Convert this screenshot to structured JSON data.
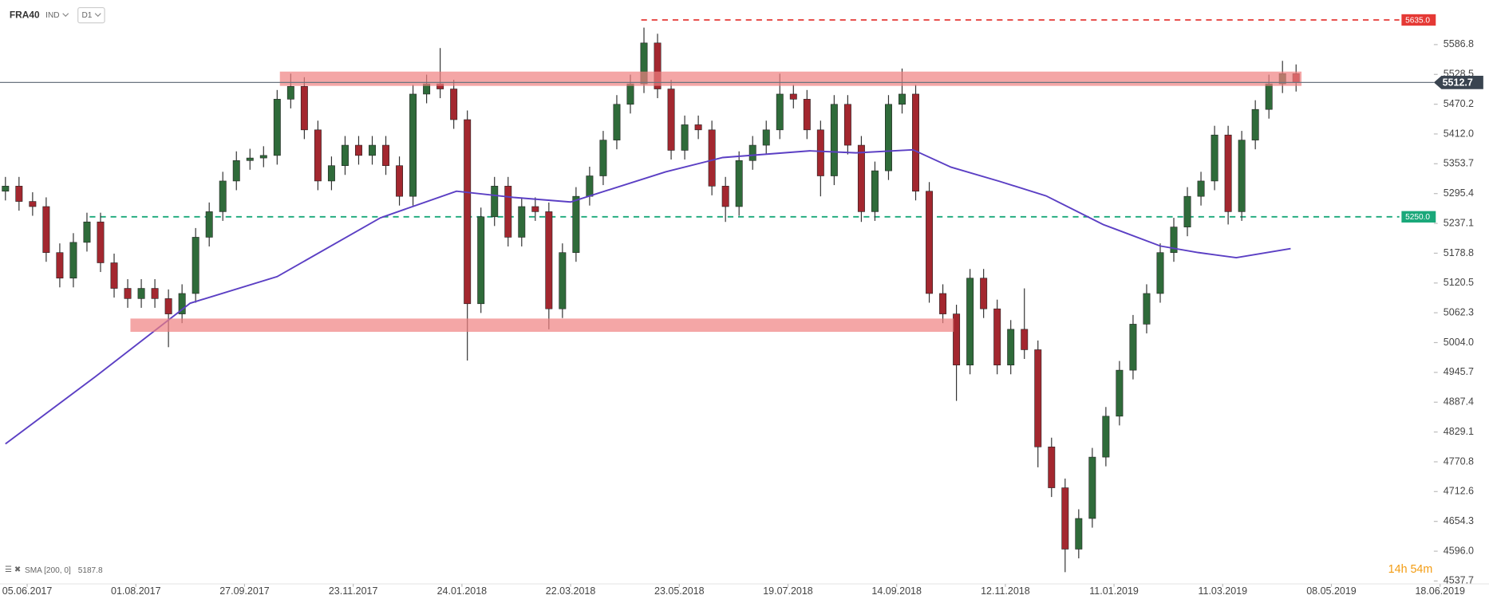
{
  "header": {
    "symbol": "FRA40",
    "kind": "IND",
    "timeframe": "D1"
  },
  "chart_data": {
    "type": "candlestick",
    "xlim": [
      0,
      548
    ],
    "ylim": [
      4532,
      5674
    ],
    "yticks": [
      5586.8,
      5528.5,
      5470.2,
      {
        "value": 5412,
        "label": "5412.0"
      },
      5353.7,
      5295.4,
      5237.1,
      5178.8,
      5120.5,
      5062.3,
      {
        "value": 5004,
        "label": "5004.0"
      },
      4945.7,
      4887.4,
      4829.1,
      4770.8,
      4712.6,
      4654.3,
      {
        "value": 4596,
        "label": "4596.0"
      },
      4537.7
    ],
    "xticks": [
      {
        "value": 10,
        "label": "05.06.2017"
      },
      {
        "value": 50,
        "label": "01.08.2017"
      },
      {
        "value": 90,
        "label": "27.09.2017"
      },
      {
        "value": 130,
        "label": "23.11.2017"
      },
      {
        "value": 170,
        "label": "24.01.2018"
      },
      {
        "value": 210,
        "label": "22.03.2018"
      },
      {
        "value": 250,
        "label": "23.05.2018"
      },
      {
        "value": 290,
        "label": "19.07.2018"
      },
      {
        "value": 330,
        "label": "14.09.2018"
      },
      {
        "value": 370,
        "label": "12.11.2018"
      },
      {
        "value": 410,
        "label": "11.01.2019"
      },
      {
        "value": 450,
        "label": "11.03.2019"
      },
      {
        "value": 490,
        "label": "08.05.2019"
      },
      {
        "value": 530,
        "label": "18.06.2019"
      }
    ],
    "candles": {
      "up_color": "#2f6b3a",
      "down_color": "#a3272f",
      "wick_color": "#333333",
      "x": [
        2,
        7,
        12,
        17,
        22,
        27,
        32,
        37,
        42,
        47,
        52,
        57,
        62,
        67,
        72,
        77,
        82,
        87,
        92,
        97,
        102,
        107,
        112,
        117,
        122,
        127,
        132,
        137,
        142,
        147,
        152,
        157,
        162,
        167,
        172,
        177,
        182,
        187,
        192,
        197,
        202,
        207,
        212,
        217,
        222,
        227,
        232,
        237,
        242,
        247,
        252,
        257,
        262,
        267,
        272,
        277,
        282,
        287,
        292,
        297,
        302,
        307,
        312,
        317,
        322,
        327,
        332,
        337,
        342,
        347,
        352,
        357,
        362,
        367,
        372,
        377,
        382,
        387,
        392,
        397,
        402,
        407,
        412,
        417,
        422,
        427,
        432,
        437,
        442,
        447,
        452,
        457,
        462,
        467,
        472,
        477
      ],
      "open": [
        5300,
        5310,
        5280,
        5270,
        5180,
        5130,
        5200,
        5240,
        5160,
        5110,
        5090,
        5110,
        5090,
        5060,
        5100,
        5210,
        5260,
        5320,
        5360,
        5365,
        5370,
        5480,
        5505,
        5420,
        5320,
        5350,
        5390,
        5370,
        5390,
        5350,
        5290,
        5490,
        5510,
        5500,
        5440,
        5080,
        5250,
        5310,
        5210,
        5270,
        5260,
        5070,
        5180,
        5290,
        5330,
        5400,
        5470,
        5510,
        5590,
        5500,
        5380,
        5430,
        5420,
        5310,
        5270,
        5360,
        5390,
        5420,
        5490,
        5480,
        5420,
        5330,
        5470,
        5390,
        5260,
        5340,
        5470,
        5490,
        5300,
        5100,
        5060,
        4960,
        5130,
        5070,
        4960,
        5030,
        4990,
        4800,
        4720,
        4600,
        4660,
        4780,
        4860,
        4950,
        5040,
        5100,
        5180,
        5230,
        5290,
        5320,
        5410,
        5260,
        5400,
        5460,
        5510,
        5530
      ],
      "high": [
        5328,
        5328,
        5298,
        5288,
        5198,
        5218,
        5258,
        5258,
        5178,
        5128,
        5128,
        5128,
        5108,
        5118,
        5228,
        5278,
        5338,
        5378,
        5383,
        5388,
        5498,
        5530,
        5523,
        5438,
        5368,
        5408,
        5408,
        5408,
        5408,
        5368,
        5508,
        5528,
        5580,
        5518,
        5458,
        5268,
        5328,
        5328,
        5288,
        5288,
        5278,
        5198,
        5308,
        5348,
        5418,
        5488,
        5528,
        5620,
        5608,
        5518,
        5448,
        5448,
        5438,
        5328,
        5378,
        5408,
        5438,
        5530,
        5508,
        5498,
        5438,
        5488,
        5488,
        5408,
        5358,
        5488,
        5540,
        5508,
        5318,
        5118,
        5078,
        5148,
        5148,
        5088,
        5048,
        5110,
        5008,
        4818,
        4738,
        4678,
        4798,
        4878,
        4968,
        5058,
        5118,
        5198,
        5248,
        5308,
        5338,
        5428,
        5428,
        5418,
        5478,
        5528,
        5555,
        5548
      ],
      "low": [
        5282,
        5262,
        5252,
        5162,
        5112,
        5112,
        5182,
        5142,
        5092,
        5072,
        5072,
        5072,
        4995,
        5042,
        5082,
        5192,
        5242,
        5302,
        5342,
        5347,
        5352,
        5462,
        5402,
        5302,
        5302,
        5332,
        5352,
        5352,
        5332,
        5272,
        5272,
        5472,
        5482,
        5422,
        4969,
        5062,
        5232,
        5192,
        5192,
        5242,
        5030,
        5052,
        5162,
        5272,
        5312,
        5382,
        5452,
        5492,
        5482,
        5362,
        5362,
        5402,
        5292,
        5240,
        5252,
        5342,
        5372,
        5402,
        5462,
        5402,
        5290,
        5312,
        5372,
        5240,
        5242,
        5322,
        5452,
        5282,
        5082,
        5042,
        4890,
        4942,
        5052,
        4942,
        4942,
        4972,
        4760,
        4702,
        4555,
        4582,
        4642,
        4762,
        4842,
        4932,
        5022,
        5082,
        5162,
        5212,
        5272,
        5302,
        5235,
        5242,
        5382,
        5442,
        5492,
        5495
      ],
      "close": [
        5310,
        5280,
        5270,
        5180,
        5130,
        5200,
        5240,
        5160,
        5110,
        5090,
        5110,
        5090,
        5060,
        5100,
        5210,
        5260,
        5320,
        5360,
        5365,
        5370,
        5480,
        5505,
        5420,
        5320,
        5350,
        5390,
        5370,
        5390,
        5350,
        5290,
        5490,
        5510,
        5500,
        5440,
        5080,
        5250,
        5310,
        5210,
        5270,
        5260,
        5070,
        5180,
        5290,
        5330,
        5400,
        5470,
        5510,
        5590,
        5500,
        5380,
        5430,
        5420,
        5310,
        5270,
        5360,
        5390,
        5420,
        5490,
        5480,
        5420,
        5330,
        5470,
        5390,
        5260,
        5340,
        5470,
        5490,
        5300,
        5100,
        5060,
        4960,
        5130,
        5070,
        4960,
        5030,
        4990,
        4800,
        4720,
        4600,
        4660,
        4780,
        4860,
        4950,
        5040,
        5100,
        5180,
        5230,
        5290,
        5320,
        5410,
        5260,
        5400,
        5460,
        5510,
        5530,
        5512.7
      ]
    },
    "sma": {
      "name": "SMA [200, 0]",
      "color": "#5b3fc4",
      "x": [
        2,
        35,
        70,
        102,
        140,
        168,
        189,
        210,
        245,
        266,
        298,
        315,
        336,
        350,
        368,
        385,
        406,
        427,
        441,
        455,
        475
      ],
      "values": [
        4806,
        4937,
        5081,
        5133,
        5248,
        5300,
        5288,
        5279,
        5338,
        5366,
        5379,
        5375,
        5381,
        5347,
        5319,
        5291,
        5235,
        5193,
        5180,
        5170,
        5187.8
      ]
    },
    "zones": [
      {
        "x": [
          103,
          479
        ],
        "y": [
          5506,
          5534
        ]
      },
      {
        "x": [
          48,
          351
        ],
        "y": [
          5025,
          5051
        ]
      }
    ],
    "zone_color": "#f08080",
    "levels": [
      {
        "value": 5635,
        "label": "5635.0",
        "color": "#e53935",
        "x": [
          236,
          515
        ]
      },
      {
        "value": 5250,
        "label": "5250.0",
        "color": "#1aa87a",
        "x": [
          33,
          515
        ]
      }
    ],
    "last_price": {
      "value": 5512.7,
      "color": "#3a4450"
    },
    "countdown": "14h 54m"
  }
}
